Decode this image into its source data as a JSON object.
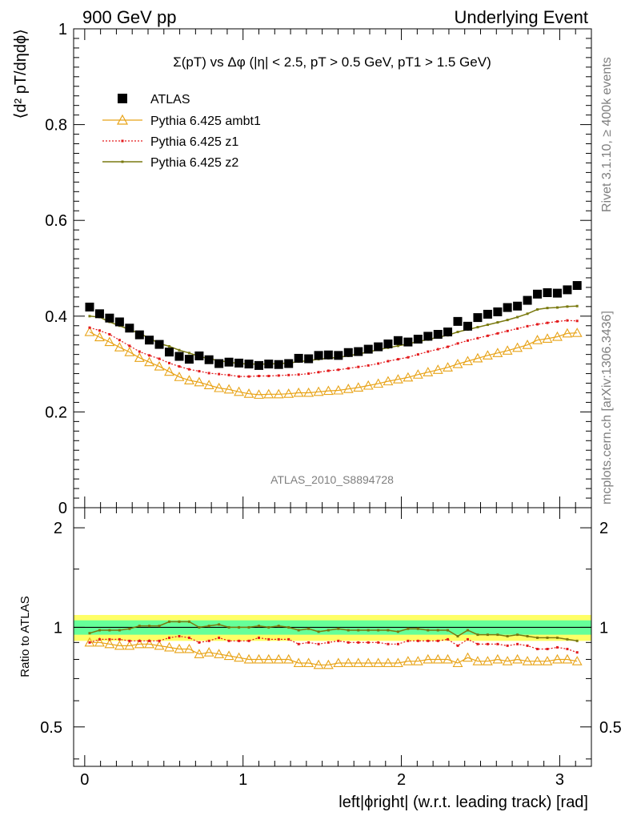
{
  "header": {
    "left": "900 GeV pp",
    "right": "Underlying Event"
  },
  "side_text": {
    "rivet": "Rivet 3.1.10, ≥ 400k events",
    "mcplots": "mcplots.cern.ch [arXiv:1306.3436]"
  },
  "watermark": "ATLAS_2010_S8894728",
  "colors": {
    "atlas": "#000000",
    "ambt1": "#e8a317",
    "z1": "#e31a1c",
    "z2": "#7a7a10",
    "band_outer": "#ffff66",
    "band_inner": "#66ff99"
  },
  "chart_data": [
    {
      "type": "scatter",
      "title": "Σ(pT) vs Δφ (|η| < 2.5, pT > 0.5 GeV, pT1 > 1.5 GeV)",
      "xlabel": "left|ϕright| (w.r.t. leading track) [rad]",
      "ylabel": "⟨d² pT/dηdϕ⟩",
      "xlim": [
        -0.07,
        3.2
      ],
      "ylim": [
        0,
        1
      ],
      "y_ticks": [
        "0",
        "0.2",
        "0.4",
        "0.6",
        "0.8",
        "1"
      ],
      "legend_placement": "top-left",
      "x": [
        0.031,
        0.094,
        0.157,
        0.22,
        0.283,
        0.346,
        0.408,
        0.471,
        0.534,
        0.597,
        0.66,
        0.723,
        0.785,
        0.848,
        0.911,
        0.974,
        1.037,
        1.1,
        1.162,
        1.225,
        1.288,
        1.351,
        1.414,
        1.477,
        1.539,
        1.602,
        1.665,
        1.728,
        1.791,
        1.854,
        1.916,
        1.979,
        2.042,
        2.105,
        2.168,
        2.231,
        2.293,
        2.356,
        2.419,
        2.482,
        2.545,
        2.608,
        2.67,
        2.733,
        2.796,
        2.859,
        2.922,
        2.985,
        3.048,
        3.11
      ],
      "series": [
        {
          "name": "ATLAS",
          "values": [
            0.419,
            0.405,
            0.396,
            0.388,
            0.375,
            0.361,
            0.35,
            0.341,
            0.325,
            0.316,
            0.31,
            0.317,
            0.309,
            0.301,
            0.304,
            0.302,
            0.3,
            0.297,
            0.3,
            0.299,
            0.301,
            0.312,
            0.311,
            0.318,
            0.319,
            0.318,
            0.324,
            0.326,
            0.331,
            0.336,
            0.342,
            0.349,
            0.346,
            0.352,
            0.358,
            0.362,
            0.367,
            0.389,
            0.379,
            0.397,
            0.404,
            0.409,
            0.418,
            0.421,
            0.433,
            0.446,
            0.449,
            0.448,
            0.455,
            0.464
          ]
        },
        {
          "name": "Pythia 6.425 ambt1",
          "values": [
            0.367,
            0.356,
            0.346,
            0.335,
            0.325,
            0.313,
            0.304,
            0.295,
            0.284,
            0.273,
            0.266,
            0.262,
            0.256,
            0.25,
            0.247,
            0.242,
            0.238,
            0.236,
            0.237,
            0.237,
            0.238,
            0.24,
            0.24,
            0.242,
            0.244,
            0.245,
            0.248,
            0.251,
            0.255,
            0.259,
            0.264,
            0.268,
            0.272,
            0.278,
            0.283,
            0.288,
            0.293,
            0.3,
            0.306,
            0.312,
            0.318,
            0.323,
            0.328,
            0.334,
            0.34,
            0.35,
            0.353,
            0.357,
            0.364,
            0.365
          ]
        },
        {
          "name": "Pythia 6.425 z1",
          "values": [
            0.376,
            0.37,
            0.362,
            0.35,
            0.338,
            0.326,
            0.318,
            0.311,
            0.302,
            0.295,
            0.289,
            0.285,
            0.281,
            0.279,
            0.277,
            0.274,
            0.274,
            0.275,
            0.275,
            0.276,
            0.277,
            0.278,
            0.28,
            0.283,
            0.286,
            0.288,
            0.291,
            0.294,
            0.297,
            0.301,
            0.306,
            0.31,
            0.314,
            0.32,
            0.326,
            0.331,
            0.336,
            0.343,
            0.349,
            0.354,
            0.359,
            0.364,
            0.369,
            0.374,
            0.379,
            0.383,
            0.386,
            0.389,
            0.391,
            0.39
          ]
        },
        {
          "name": "Pythia 6.425 z2",
          "values": [
            0.4,
            0.398,
            0.388,
            0.38,
            0.372,
            0.364,
            0.354,
            0.343,
            0.337,
            0.329,
            0.323,
            0.316,
            0.311,
            0.307,
            0.304,
            0.301,
            0.3,
            0.3,
            0.3,
            0.301,
            0.302,
            0.305,
            0.307,
            0.31,
            0.312,
            0.314,
            0.317,
            0.321,
            0.325,
            0.33,
            0.334,
            0.338,
            0.342,
            0.347,
            0.351,
            0.356,
            0.36,
            0.367,
            0.372,
            0.377,
            0.382,
            0.387,
            0.392,
            0.398,
            0.405,
            0.414,
            0.417,
            0.418,
            0.42,
            0.421
          ]
        }
      ]
    },
    {
      "type": "scatter",
      "title": "",
      "xlabel": "left|ϕright| (w.r.t. leading track) [rad]",
      "ylabel": "Ratio to ATLAS",
      "xlim": [
        -0.07,
        3.2
      ],
      "ylim": [
        0.38,
        2.3
      ],
      "y_scale": "log",
      "x_ticks": [
        "0",
        "1",
        "2",
        "3"
      ],
      "y_ticks": [
        "0.5",
        "1",
        "2"
      ],
      "band": {
        "outer": [
          0.91,
          1.09
        ],
        "inner": [
          0.95,
          1.05
        ]
      },
      "series": [
        {
          "name": "Pythia 6.425 ambt1",
          "values": [
            0.9,
            0.9,
            0.89,
            0.88,
            0.88,
            0.89,
            0.89,
            0.88,
            0.87,
            0.86,
            0.86,
            0.83,
            0.84,
            0.83,
            0.82,
            0.81,
            0.8,
            0.8,
            0.8,
            0.8,
            0.8,
            0.78,
            0.78,
            0.77,
            0.77,
            0.78,
            0.78,
            0.78,
            0.78,
            0.78,
            0.78,
            0.78,
            0.79,
            0.79,
            0.8,
            0.8,
            0.8,
            0.78,
            0.81,
            0.79,
            0.79,
            0.8,
            0.79,
            0.8,
            0.79,
            0.79,
            0.79,
            0.8,
            0.8,
            0.79
          ]
        },
        {
          "name": "Pythia 6.425 z1",
          "values": [
            0.9,
            0.92,
            0.92,
            0.92,
            0.91,
            0.91,
            0.91,
            0.91,
            0.93,
            0.94,
            0.93,
            0.9,
            0.91,
            0.93,
            0.91,
            0.91,
            0.91,
            0.93,
            0.92,
            0.92,
            0.92,
            0.89,
            0.9,
            0.89,
            0.9,
            0.91,
            0.9,
            0.9,
            0.9,
            0.9,
            0.89,
            0.89,
            0.91,
            0.91,
            0.91,
            0.91,
            0.92,
            0.88,
            0.92,
            0.89,
            0.89,
            0.89,
            0.88,
            0.89,
            0.88,
            0.86,
            0.86,
            0.87,
            0.86,
            0.84
          ]
        },
        {
          "name": "Pythia 6.425 z2",
          "values": [
            0.96,
            0.98,
            0.98,
            0.98,
            0.99,
            1.01,
            1.01,
            1.01,
            1.04,
            1.04,
            1.04,
            1.0,
            1.01,
            1.02,
            1.0,
            1.0,
            1.0,
            1.01,
            1.0,
            1.01,
            1.0,
            0.98,
            0.99,
            0.97,
            0.98,
            0.99,
            0.98,
            0.98,
            0.98,
            0.98,
            0.98,
            0.97,
            0.99,
            0.99,
            0.98,
            0.98,
            0.98,
            0.94,
            0.98,
            0.95,
            0.95,
            0.95,
            0.94,
            0.95,
            0.94,
            0.93,
            0.93,
            0.93,
            0.92,
            0.91
          ]
        }
      ]
    }
  ]
}
